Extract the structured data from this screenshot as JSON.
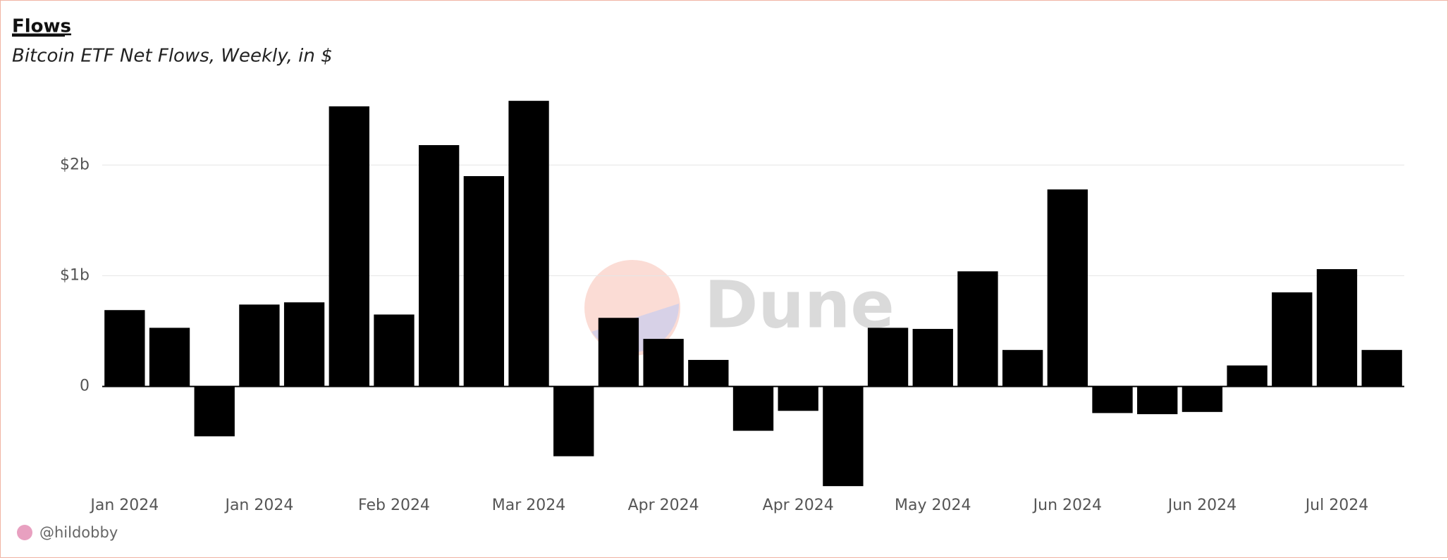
{
  "chart_data": {
    "type": "bar",
    "title": "Flows",
    "subtitle": "Bitcoin ETF Net Flows, Weekly, in $",
    "watermark": "Dune",
    "author": "@hildobby",
    "color": "#000000",
    "grid": true,
    "categories": [
      "Jan 2024",
      null,
      null,
      "Jan 2024",
      null,
      null,
      "Feb 2024",
      null,
      null,
      "Mar 2024",
      null,
      null,
      "Apr 2024",
      null,
      null,
      "Apr 2024",
      null,
      null,
      "May 2024",
      null,
      null,
      "Jun 2024",
      null,
      null,
      "Jun 2024",
      null,
      null,
      "Jul 2024",
      null
    ],
    "values": [
      690000000,
      530000000,
      -450000000,
      740000000,
      760000000,
      2530000000,
      650000000,
      2180000000,
      1900000000,
      2580000000,
      -630000000,
      620000000,
      430000000,
      240000000,
      -400000000,
      -220000000,
      -900000000,
      530000000,
      520000000,
      1040000000,
      330000000,
      1780000000,
      -240000000,
      -250000000,
      -230000000,
      190000000,
      850000000,
      1060000000,
      330000000
    ],
    "ylim": [
      -950000000,
      2600000000
    ],
    "yticks": [
      0,
      {
        "value": 1000000000,
        "label": "$1b"
      },
      {
        "value": 2000000000,
        "label": "$2b"
      }
    ]
  }
}
